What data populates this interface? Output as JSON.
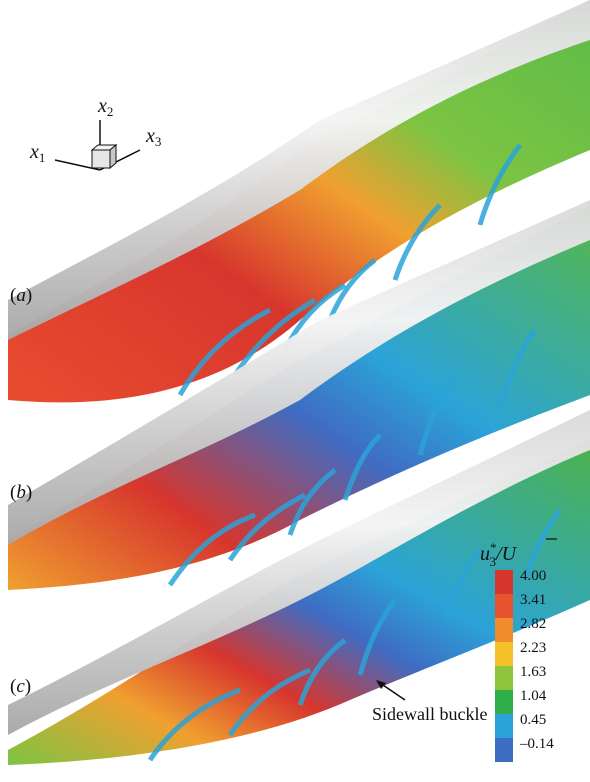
{
  "panels": [
    {
      "label": "a"
    },
    {
      "label": "b"
    },
    {
      "label": "c"
    }
  ],
  "axes_triad": {
    "x1": "x",
    "x1_sub": "1",
    "x2": "x",
    "x2_sub": "2",
    "x3": "x",
    "x3_sub": "3"
  },
  "colorbar": {
    "title_var": "u",
    "title_sup": "*",
    "title_sub": "3",
    "title_den": "U",
    "ticks": [
      "4.00",
      "3.41",
      "2.82",
      "2.23",
      "1.63",
      "1.04",
      "0.45",
      "–0.14"
    ],
    "colors": [
      "#d7362d",
      "#e8532f",
      "#f08c2c",
      "#f3c12a",
      "#8fc43d",
      "#2fae4a",
      "#2ba3d8",
      "#3f6cc3"
    ]
  },
  "annotation": {
    "text": "Sidewall buckle"
  }
}
